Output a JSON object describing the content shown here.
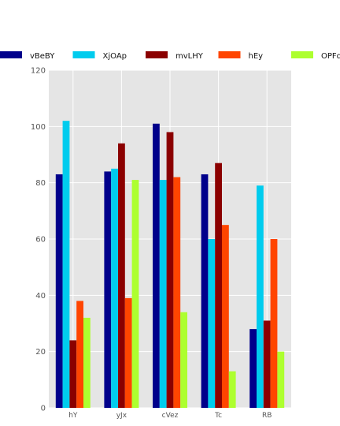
{
  "chart_data": {
    "type": "bar",
    "categories": [
      "hY",
      "yJx",
      "cVez",
      "Tc",
      "RB"
    ],
    "series": [
      {
        "name": "vBeBY",
        "color": "#00008b",
        "values": [
          83,
          84,
          101,
          83,
          28
        ]
      },
      {
        "name": "XjOAp",
        "color": "#00ccee",
        "values": [
          102,
          85,
          81,
          60,
          79
        ]
      },
      {
        "name": "mvLHY",
        "color": "#8b0000",
        "values": [
          24,
          94,
          98,
          87,
          31
        ]
      },
      {
        "name": "hEy",
        "color": "#ff4500",
        "values": [
          38,
          39,
          82,
          65,
          60
        ]
      },
      {
        "name": "OPFd",
        "color": "#adff2f",
        "values": [
          32,
          81,
          34,
          13,
          20
        ]
      }
    ],
    "ylim": [
      0,
      120
    ],
    "yticks": [
      0,
      20,
      40,
      60,
      80,
      100,
      120
    ],
    "grid": true,
    "legend_position": "top"
  }
}
